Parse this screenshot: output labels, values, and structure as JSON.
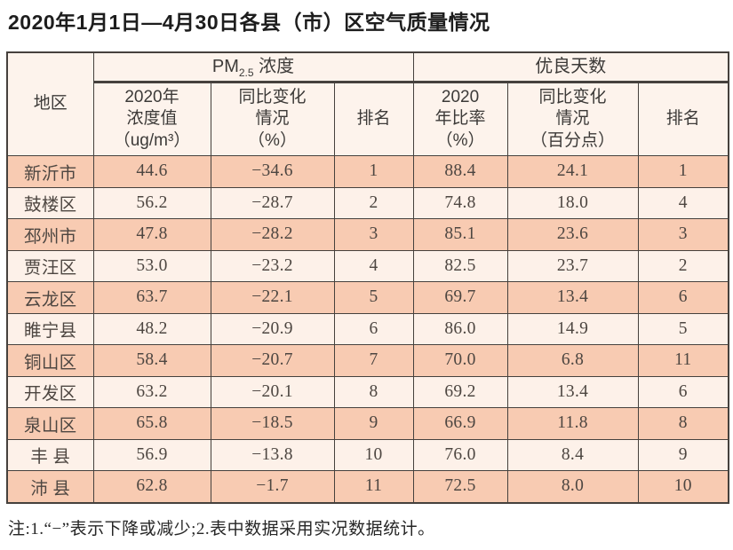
{
  "title": "2020年1月1日—4月30日各县（市）区空气质量情况",
  "note": "注:1.“−”表示下降或减少;2.表中数据采用实况数据统计。",
  "colors": {
    "row_highlight": "#f8cbb2",
    "row_light": "#fdf1e9",
    "header_bg": "#fdf3ec",
    "grid_border": "#46413d"
  },
  "table": {
    "region_header": "地区",
    "pm25_group": {
      "prefix": "PM",
      "sub": "2.5",
      "suffix": " 浓度"
    },
    "good_group": "优良天数",
    "headers": {
      "pm_value": [
        "2020年",
        "浓度值",
        "（ug/m³）"
      ],
      "pm_change": [
        "同比变化",
        "情况",
        "（%）"
      ],
      "pm_rank": "排名",
      "good_rate": [
        "2020",
        "年比率",
        "（%）"
      ],
      "good_change": [
        "同比变化",
        "情况",
        "（百分点）"
      ],
      "good_rank": "排名"
    },
    "columns_keys": [
      "region",
      "pm_value",
      "pm_change",
      "pm_rank",
      "good_rate",
      "good_change",
      "good_rank"
    ],
    "rows": [
      {
        "region": "新沂市",
        "pm_value": "44.6",
        "pm_change": "−34.6",
        "pm_rank": "1",
        "good_rate": "88.4",
        "good_change": "24.1",
        "good_rank": "1"
      },
      {
        "region": "鼓楼区",
        "pm_value": "56.2",
        "pm_change": "−28.7",
        "pm_rank": "2",
        "good_rate": "74.8",
        "good_change": "18.0",
        "good_rank": "4"
      },
      {
        "region": "邳州市",
        "pm_value": "47.8",
        "pm_change": "−28.2",
        "pm_rank": "3",
        "good_rate": "85.1",
        "good_change": "23.6",
        "good_rank": "3"
      },
      {
        "region": "贾汪区",
        "pm_value": "53.0",
        "pm_change": "−23.2",
        "pm_rank": "4",
        "good_rate": "82.5",
        "good_change": "23.7",
        "good_rank": "2"
      },
      {
        "region": "云龙区",
        "pm_value": "63.7",
        "pm_change": "−22.1",
        "pm_rank": "5",
        "good_rate": "69.7",
        "good_change": "13.4",
        "good_rank": "6"
      },
      {
        "region": "睢宁县",
        "pm_value": "48.2",
        "pm_change": "−20.9",
        "pm_rank": "6",
        "good_rate": "86.0",
        "good_change": "14.9",
        "good_rank": "5"
      },
      {
        "region": "铜山区",
        "pm_value": "58.4",
        "pm_change": "−20.7",
        "pm_rank": "7",
        "good_rate": "70.0",
        "good_change": "6.8",
        "good_rank": "11"
      },
      {
        "region": "开发区",
        "pm_value": "63.2",
        "pm_change": "−20.1",
        "pm_rank": "8",
        "good_rate": "69.2",
        "good_change": "13.4",
        "good_rank": "6"
      },
      {
        "region": "泉山区",
        "pm_value": "65.8",
        "pm_change": "−18.5",
        "pm_rank": "9",
        "good_rate": "66.9",
        "good_change": "11.8",
        "good_rank": "8"
      },
      {
        "region": "丰 县",
        "pm_value": "56.9",
        "pm_change": "−13.8",
        "pm_rank": "10",
        "good_rate": "76.0",
        "good_change": "8.4",
        "good_rank": "9"
      },
      {
        "region": "沛 县",
        "pm_value": "62.8",
        "pm_change": "−1.7",
        "pm_rank": "11",
        "good_rate": "72.5",
        "good_change": "8.0",
        "good_rank": "10"
      }
    ]
  }
}
